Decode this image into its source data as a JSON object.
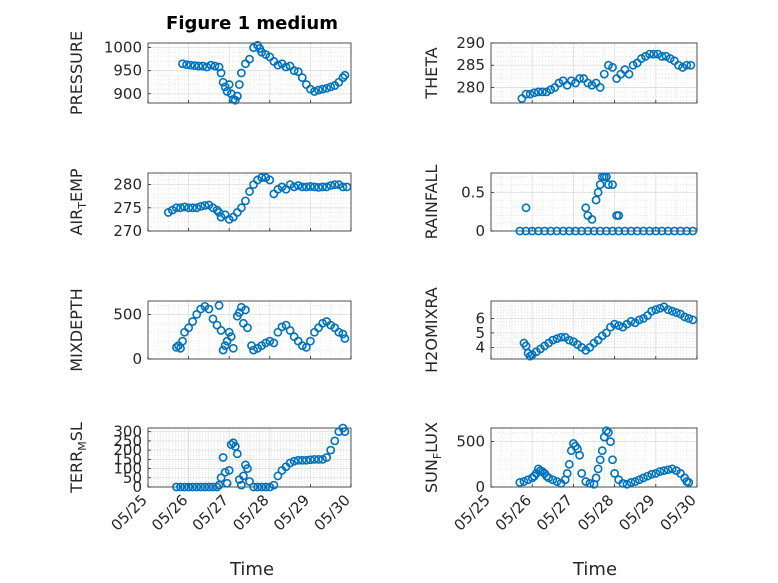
{
  "figure": {
    "title": "Figure 1 medium",
    "xlabel": "Time",
    "marker_color": "#0072BD",
    "grid": true,
    "minor_grid": true
  },
  "chart_data": [
    {
      "type": "scatter",
      "ylabel": "PRESSURE",
      "yticks": [
        "900",
        "950",
        "1000"
      ],
      "ylim": [
        880,
        1010
      ],
      "x": [
        0.85,
        0.95,
        1.05,
        1.15,
        1.25,
        1.35,
        1.45,
        1.55,
        1.65,
        1.75,
        1.8,
        1.85,
        1.9,
        1.95,
        2.0,
        2.05,
        2.1,
        2.15,
        2.2,
        2.25,
        2.3,
        2.4,
        2.5,
        2.6,
        2.7,
        2.75,
        2.8,
        2.9,
        3.0,
        3.1,
        3.2,
        3.3,
        3.4,
        3.5,
        3.6,
        3.7,
        3.8,
        3.9,
        4.0,
        4.1,
        4.2,
        4.3,
        4.4,
        4.5,
        4.6,
        4.7,
        4.8,
        4.85
      ],
      "y": [
        965,
        963,
        962,
        961,
        960,
        960,
        958,
        962,
        960,
        958,
        945,
        925,
        915,
        905,
        920,
        900,
        888,
        886,
        895,
        920,
        945,
        965,
        975,
        1000,
        1005,
        998,
        990,
        985,
        980,
        970,
        962,
        965,
        958,
        960,
        950,
        948,
        935,
        920,
        910,
        905,
        908,
        910,
        912,
        915,
        918,
        925,
        935,
        940
      ]
    },
    {
      "type": "scatter",
      "ylabel": "THETA",
      "yticks": [
        "280",
        "285",
        "290"
      ],
      "ylim": [
        276.5,
        290
      ],
      "x": [
        0.75,
        0.85,
        0.95,
        1.05,
        1.15,
        1.25,
        1.35,
        1.45,
        1.55,
        1.65,
        1.75,
        1.85,
        1.95,
        2.05,
        2.15,
        2.25,
        2.35,
        2.45,
        2.55,
        2.65,
        2.75,
        2.85,
        2.95,
        3.05,
        3.15,
        3.25,
        3.35,
        3.45,
        3.55,
        3.65,
        3.75,
        3.85,
        3.95,
        4.05,
        4.15,
        4.25,
        4.35,
        4.45,
        4.55,
        4.65,
        4.75,
        4.85
      ],
      "y": [
        277.5,
        278.5,
        278.5,
        278.8,
        279,
        279,
        279,
        279.5,
        280,
        281,
        281.5,
        280.5,
        281.5,
        281,
        282,
        282,
        281,
        280.5,
        281,
        280,
        283,
        285,
        284.5,
        282,
        283,
        284,
        283,
        285,
        285.5,
        286.5,
        287,
        287.5,
        287.5,
        287.5,
        287,
        287,
        286.5,
        286,
        285,
        284.5,
        285,
        285
      ]
    },
    {
      "type": "scatter",
      "ylabel": "AIR_TEMP",
      "yticks": [
        "270",
        "275",
        "280"
      ],
      "ylim": [
        270,
        282.5
      ],
      "x": [
        0.5,
        0.6,
        0.7,
        0.8,
        0.9,
        1.0,
        1.1,
        1.2,
        1.3,
        1.4,
        1.5,
        1.6,
        1.7,
        1.75,
        1.8,
        1.9,
        2.0,
        2.1,
        2.2,
        2.3,
        2.4,
        2.5,
        2.6,
        2.7,
        2.8,
        2.9,
        3.0,
        3.1,
        3.2,
        3.3,
        3.4,
        3.5,
        3.6,
        3.7,
        3.8,
        3.9,
        4.0,
        4.1,
        4.2,
        4.3,
        4.4,
        4.5,
        4.6,
        4.7,
        4.8,
        4.9
      ],
      "y": [
        274,
        274.5,
        275,
        275,
        275.2,
        275,
        275,
        275,
        275.3,
        275.5,
        275.6,
        275,
        274.5,
        274,
        273,
        273.5,
        272.5,
        273,
        274,
        275,
        276.5,
        278.5,
        280,
        281,
        281.5,
        281.5,
        281,
        278,
        279,
        279.5,
        279,
        280,
        279.5,
        279.8,
        279.5,
        279.5,
        279.6,
        279.5,
        279.4,
        279.5,
        279.5,
        279.8,
        280,
        280,
        279.5,
        279.5
      ]
    },
    {
      "type": "scatter",
      "ylabel": "RAINFALL",
      "yticks": [
        "0",
        "0.5"
      ],
      "ylim": [
        0,
        0.75
      ],
      "x": [
        0.7,
        0.85,
        1.0,
        1.15,
        1.3,
        1.45,
        1.6,
        1.75,
        1.9,
        2.05,
        2.2,
        2.35,
        2.5,
        2.65,
        2.8,
        2.95,
        3.1,
        3.25,
        3.4,
        3.55,
        3.7,
        3.85,
        4.0,
        4.15,
        4.3,
        4.45,
        4.6,
        4.75,
        4.9,
        0.85,
        2.3,
        2.35,
        2.45,
        2.55,
        2.6,
        2.65,
        2.7,
        2.75,
        2.8,
        2.85,
        2.95,
        3.05,
        3.1
      ],
      "y": [
        0,
        0,
        0,
        0,
        0,
        0,
        0,
        0,
        0,
        0,
        0,
        0,
        0,
        0,
        0,
        0,
        0,
        0,
        0,
        0,
        0,
        0,
        0,
        0,
        0,
        0,
        0,
        0,
        0,
        0.3,
        0.3,
        0.2,
        0.15,
        0.4,
        0.5,
        0.6,
        0.7,
        0.7,
        0.7,
        0.6,
        0.6,
        0.2,
        0.2
      ]
    },
    {
      "type": "scatter",
      "ylabel": "MIXDEPTH",
      "yticks": [
        "0",
        "500"
      ],
      "ylim": [
        0,
        650
      ],
      "x": [
        0.7,
        0.75,
        0.8,
        0.85,
        0.9,
        1.0,
        1.1,
        1.2,
        1.3,
        1.4,
        1.5,
        1.6,
        1.7,
        1.75,
        1.8,
        1.85,
        1.9,
        1.95,
        2.0,
        2.05,
        2.1,
        2.2,
        2.25,
        2.3,
        2.35,
        2.4,
        2.45,
        2.55,
        2.6,
        2.7,
        2.8,
        2.9,
        3.0,
        3.1,
        3.2,
        3.3,
        3.4,
        3.5,
        3.6,
        3.7,
        3.8,
        3.9,
        4.0,
        4.1,
        4.2,
        4.3,
        4.4,
        4.5,
        4.6,
        4.7,
        4.8,
        4.85
      ],
      "y": [
        130,
        150,
        120,
        200,
        300,
        350,
        420,
        500,
        560,
        590,
        560,
        450,
        380,
        600,
        320,
        100,
        150,
        200,
        300,
        250,
        120,
        480,
        520,
        580,
        400,
        550,
        350,
        150,
        100,
        120,
        150,
        180,
        200,
        180,
        300,
        360,
        380,
        320,
        250,
        200,
        150,
        130,
        200,
        300,
        350,
        400,
        420,
        380,
        350,
        300,
        280,
        230
      ]
    },
    {
      "type": "scatter",
      "ylabel": "H2OMIXRA",
      "yticks": [
        "4",
        "5",
        "6"
      ],
      "ylim": [
        3.2,
        7.2
      ],
      "x": [
        0.8,
        0.85,
        0.9,
        0.95,
        1.0,
        1.1,
        1.2,
        1.3,
        1.4,
        1.5,
        1.6,
        1.7,
        1.8,
        1.9,
        2.0,
        2.1,
        2.2,
        2.3,
        2.4,
        2.5,
        2.6,
        2.7,
        2.8,
        2.9,
        3.0,
        3.1,
        3.2,
        3.3,
        3.4,
        3.5,
        3.6,
        3.7,
        3.8,
        3.9,
        4.0,
        4.1,
        4.2,
        4.3,
        4.4,
        4.5,
        4.6,
        4.7,
        4.8,
        4.9
      ],
      "y": [
        4.3,
        4.1,
        3.6,
        3.4,
        3.5,
        3.7,
        3.9,
        4.1,
        4.3,
        4.5,
        4.6,
        4.7,
        4.7,
        4.5,
        4.4,
        4.2,
        4.0,
        3.8,
        4.0,
        4.3,
        4.5,
        4.8,
        5.0,
        5.4,
        5.6,
        5.5,
        5.4,
        5.6,
        5.8,
        5.7,
        5.9,
        6.0,
        6.2,
        6.5,
        6.6,
        6.7,
        6.8,
        6.6,
        6.5,
        6.4,
        6.3,
        6.1,
        6.0,
        5.9
      ]
    },
    {
      "type": "scatter",
      "ylabel": "TERR_MSL",
      "yticks": [
        "0",
        "50",
        "100",
        "150",
        "200",
        "250",
        "300"
      ],
      "ylim": [
        0,
        320
      ],
      "x": [
        0.7,
        0.8,
        0.9,
        1.0,
        1.1,
        1.2,
        1.3,
        1.4,
        1.5,
        1.6,
        1.7,
        1.75,
        1.8,
        1.85,
        1.9,
        1.95,
        2.0,
        2.05,
        2.1,
        2.15,
        2.2,
        2.25,
        2.3,
        2.35,
        2.4,
        2.45,
        2.5,
        2.6,
        2.7,
        2.8,
        2.9,
        3.0,
        3.1,
        3.2,
        3.3,
        3.4,
        3.5,
        3.6,
        3.7,
        3.8,
        3.9,
        4.0,
        4.1,
        4.2,
        4.3,
        4.4,
        4.5,
        4.6,
        4.7,
        4.8,
        4.85
      ],
      "y": [
        0,
        0,
        0,
        0,
        0,
        0,
        0,
        0,
        0,
        0,
        0,
        10,
        50,
        160,
        80,
        20,
        90,
        230,
        240,
        220,
        180,
        40,
        10,
        60,
        120,
        100,
        30,
        0,
        0,
        0,
        0,
        0,
        10,
        60,
        90,
        110,
        130,
        140,
        145,
        145,
        145,
        148,
        150,
        150,
        150,
        160,
        200,
        250,
        300,
        320,
        300
      ]
    },
    {
      "type": "scatter",
      "ylabel": "SUN_FLUX",
      "yticks": [
        "0",
        "500"
      ],
      "ylim": [
        0,
        650
      ],
      "x": [
        0.7,
        0.8,
        0.9,
        1.0,
        1.05,
        1.1,
        1.15,
        1.2,
        1.25,
        1.3,
        1.35,
        1.4,
        1.5,
        1.6,
        1.7,
        1.8,
        1.85,
        1.9,
        1.95,
        2.0,
        2.05,
        2.1,
        2.15,
        2.2,
        2.3,
        2.4,
        2.5,
        2.55,
        2.6,
        2.65,
        2.7,
        2.75,
        2.8,
        2.85,
        2.9,
        2.95,
        3.0,
        3.1,
        3.2,
        3.3,
        3.4,
        3.5,
        3.6,
        3.7,
        3.8,
        3.9,
        4.0,
        4.1,
        4.2,
        4.3,
        4.4,
        4.5,
        4.6,
        4.7,
        4.75,
        4.8
      ],
      "y": [
        50,
        60,
        80,
        100,
        120,
        150,
        200,
        180,
        170,
        150,
        120,
        100,
        80,
        60,
        40,
        80,
        150,
        250,
        400,
        480,
        450,
        420,
        350,
        150,
        60,
        40,
        30,
        100,
        200,
        300,
        400,
        550,
        620,
        600,
        500,
        300,
        150,
        80,
        40,
        30,
        50,
        60,
        80,
        100,
        120,
        140,
        150,
        170,
        180,
        190,
        200,
        180,
        150,
        100,
        60,
        50
      ]
    }
  ],
  "x_ticks": [
    "05/25",
    "05/26",
    "05/27",
    "05/28",
    "05/29",
    "05/30"
  ]
}
